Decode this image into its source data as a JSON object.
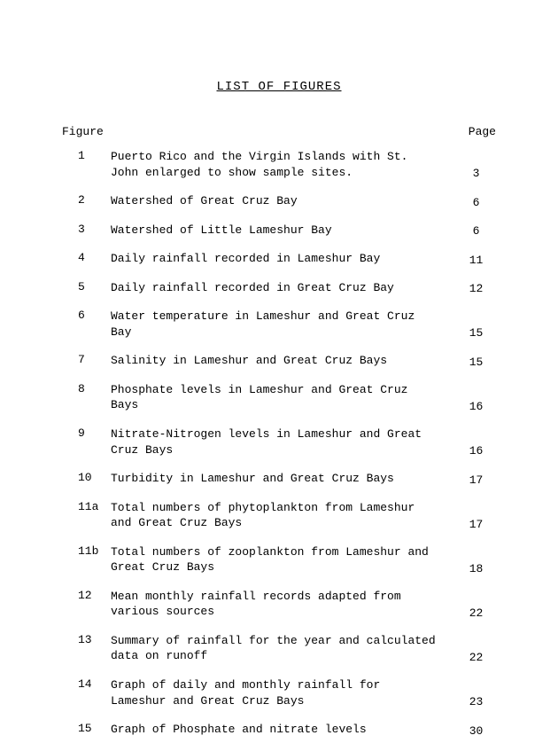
{
  "title": "LIST OF FIGURES",
  "header": {
    "figure": "Figure",
    "page": "Page"
  },
  "figures": [
    {
      "num": "1",
      "desc": "Puerto Rico and the Virgin Islands with St. John enlarged to show sample sites.",
      "page": "3"
    },
    {
      "num": "2",
      "desc": "Watershed of Great Cruz Bay",
      "page": "6"
    },
    {
      "num": "3",
      "desc": "Watershed of Little Lameshur Bay",
      "page": "6"
    },
    {
      "num": "4",
      "desc": "Daily rainfall recorded in Lameshur Bay",
      "page": "11"
    },
    {
      "num": "5",
      "desc": "Daily rainfall recorded in Great Cruz Bay",
      "page": "12"
    },
    {
      "num": "6",
      "desc": "Water temperature in Lameshur and Great Cruz Bay",
      "page": "15"
    },
    {
      "num": "7",
      "desc": "Salinity in Lameshur and Great Cruz Bays",
      "page": "15"
    },
    {
      "num": "8",
      "desc": "Phosphate levels in Lameshur and Great Cruz Bays",
      "page": "16"
    },
    {
      "num": "9",
      "desc": "Nitrate-Nitrogen levels in Lameshur and Great Cruz Bays",
      "page": "16"
    },
    {
      "num": "10",
      "desc": "Turbidity in Lameshur  and Great Cruz Bays",
      "page": "17"
    },
    {
      "num": "11a",
      "desc": "Total numbers of phytoplankton from Lameshur and Great Cruz Bays",
      "page": "17"
    },
    {
      "num": "11b",
      "desc": "Total numbers of zooplankton from Lameshur and Great Cruz Bays",
      "page": "18"
    },
    {
      "num": "12",
      "desc": "Mean monthly rainfall records adapted from various sources",
      "page": "22"
    },
    {
      "num": "13",
      "desc": "Summary of rainfall for the year and calculated data on runoff",
      "page": "22"
    },
    {
      "num": "14",
      "desc": "Graph of daily and monthly rainfall for Lameshur and Great Cruz Bays",
      "page": "23"
    },
    {
      "num": "15",
      "desc": "Graph of Phosphate and nitrate levels",
      "page": "30"
    }
  ]
}
